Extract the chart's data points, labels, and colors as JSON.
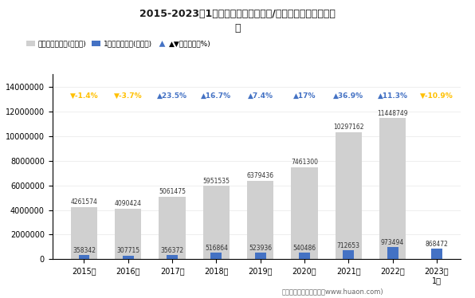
{
  "title": "2015-2023年1月安徽省（境内目的地/货源地）进出口总额统\n计",
  "years": [
    "2015年",
    "2016年",
    "2017年",
    "2018年",
    "2019年",
    "2020年",
    "2021年",
    "2022年",
    "2023年\n1月"
  ],
  "cumulative": [
    4261574,
    4090424,
    5061475,
    5951535,
    6379436,
    7461300,
    10297162,
    11448749,
    null
  ],
  "monthly": [
    358342,
    307715,
    356372,
    516864,
    523936,
    540486,
    712653,
    973494,
    868472
  ],
  "growth": [
    "-1.4%",
    "-3.7%",
    "23.5%",
    "16.7%",
    "7.4%",
    "17%",
    "36.9%",
    "11.3%",
    "-10.9%"
  ],
  "growth_vals": [
    -1.4,
    -3.7,
    23.5,
    16.7,
    7.4,
    17.0,
    36.9,
    11.3,
    -10.9
  ],
  "bar_color_cumulative": "#d0d0d0",
  "bar_color_monthly": "#4472c4",
  "triangle_up_color": "#4472c4",
  "triangle_down_color": "#ffc000",
  "growth_text_color_up": "#4472c4",
  "growth_text_color_down": "#ffc000",
  "footer": "制图：华经产业研究院（www.huaon.com)",
  "ylim": [
    0,
    15000000
  ],
  "yticks": [
    0,
    2000000,
    4000000,
    6000000,
    8000000,
    10000000,
    12000000,
    14000000
  ],
  "legend_labels": [
    "累计进出口总额(万美元)",
    "1月进出口总额(万美元)",
    "▲▼同比增长（%)"
  ],
  "legend_colors": [
    "#d0d0d0",
    "#4472c4",
    "#4472c4"
  ],
  "bg_color": "#ffffff",
  "cum_bar_width": 0.6,
  "mon_bar_width": 0.25
}
